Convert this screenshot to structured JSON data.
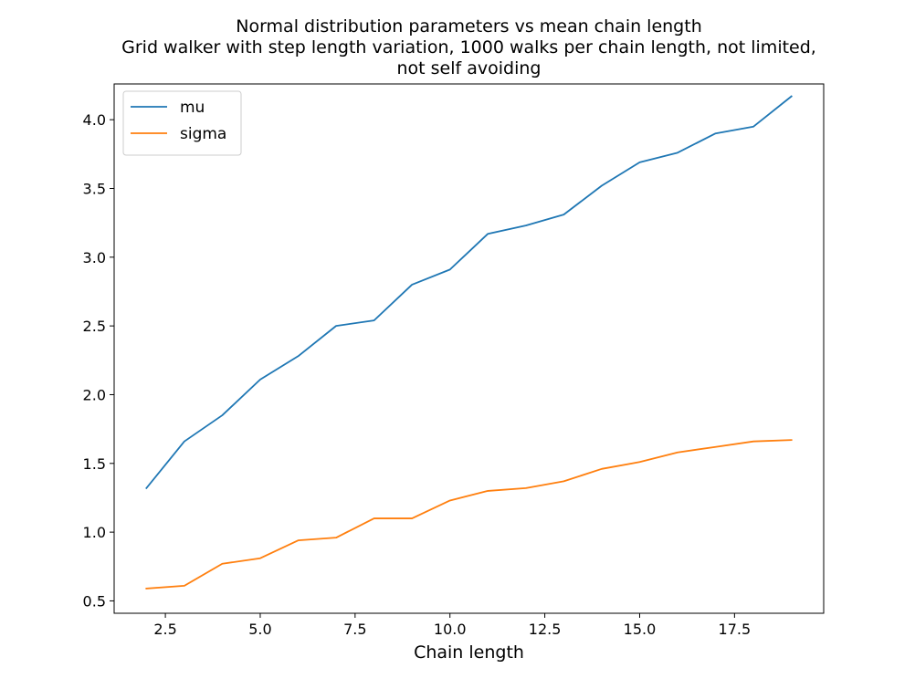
{
  "chart_data": {
    "type": "line",
    "title_lines": [
      "Normal distribution parameters vs mean chain length",
      "Grid walker with step length variation, 1000 walks per chain length, not limited,",
      "not self avoiding"
    ],
    "xlabel": "Chain length",
    "ylabel": "",
    "xlim": [
      1.15,
      19.85
    ],
    "ylim": [
      0.41,
      4.26
    ],
    "x_ticks": [
      2.5,
      5.0,
      7.5,
      10.0,
      12.5,
      15.0,
      17.5
    ],
    "x_tick_labels": [
      "2.5",
      "5.0",
      "7.5",
      "10.0",
      "12.5",
      "15.0",
      "17.5"
    ],
    "y_ticks": [
      0.5,
      1.0,
      1.5,
      2.0,
      2.5,
      3.0,
      3.5,
      4.0
    ],
    "y_tick_labels": [
      "0.5",
      "1.0",
      "1.5",
      "2.0",
      "2.5",
      "3.0",
      "3.5",
      "4.0"
    ],
    "grid": false,
    "legend_position": "top-left",
    "x": [
      2,
      3,
      4,
      5,
      6,
      7,
      8,
      9,
      10,
      11,
      12,
      13,
      14,
      15,
      16,
      17,
      18,
      19
    ],
    "series": [
      {
        "name": "mu",
        "color": "#1f77b4",
        "values": [
          1.32,
          1.66,
          1.85,
          2.11,
          2.28,
          2.5,
          2.54,
          2.8,
          2.91,
          3.17,
          3.23,
          3.31,
          3.52,
          3.69,
          3.76,
          3.9,
          3.95,
          4.17
        ]
      },
      {
        "name": "sigma",
        "color": "#ff7f0e",
        "values": [
          0.59,
          0.61,
          0.77,
          0.81,
          0.94,
          0.96,
          1.1,
          1.1,
          1.23,
          1.3,
          1.32,
          1.37,
          1.46,
          1.51,
          1.58,
          1.62,
          1.66,
          1.67
        ]
      }
    ]
  }
}
